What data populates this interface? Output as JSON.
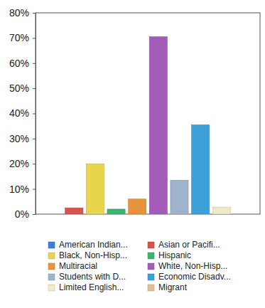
{
  "chart_data": {
    "type": "bar",
    "categories": [
      "American Indian...",
      "Asian or Pacifi...",
      "Black, Non-Hisp...",
      "Hispanic",
      "Multiracial",
      "White, Non-Hisp...",
      "Students with D...",
      "Economic Disadv...",
      "Limited English...",
      "Migrant"
    ],
    "values": [
      0,
      2.5,
      20,
      2,
      6,
      70.5,
      13.5,
      35.5,
      2.8,
      0
    ],
    "colors": [
      "#3b7fd9",
      "#d9534f",
      "#e8d44d",
      "#3cb371",
      "#e8943a",
      "#a45cb8",
      "#9fb3cc",
      "#3ea0d8",
      "#eeeac8",
      "#dcc09a"
    ],
    "ylim": [
      0,
      80
    ],
    "yticks": [
      {
        "value": 0,
        "label": "0%"
      },
      {
        "value": 10,
        "label": "10%"
      },
      {
        "value": 20,
        "label": "20%"
      },
      {
        "value": 30,
        "label": "30%"
      },
      {
        "value": 40,
        "label": "40%"
      },
      {
        "value": 50,
        "label": "50%"
      },
      {
        "value": 60,
        "label": "60%"
      },
      {
        "value": 70,
        "label": "70%"
      },
      {
        "value": 80,
        "label": "80%"
      }
    ],
    "grid": false,
    "legend": "bottom",
    "tick_labels": "y"
  }
}
